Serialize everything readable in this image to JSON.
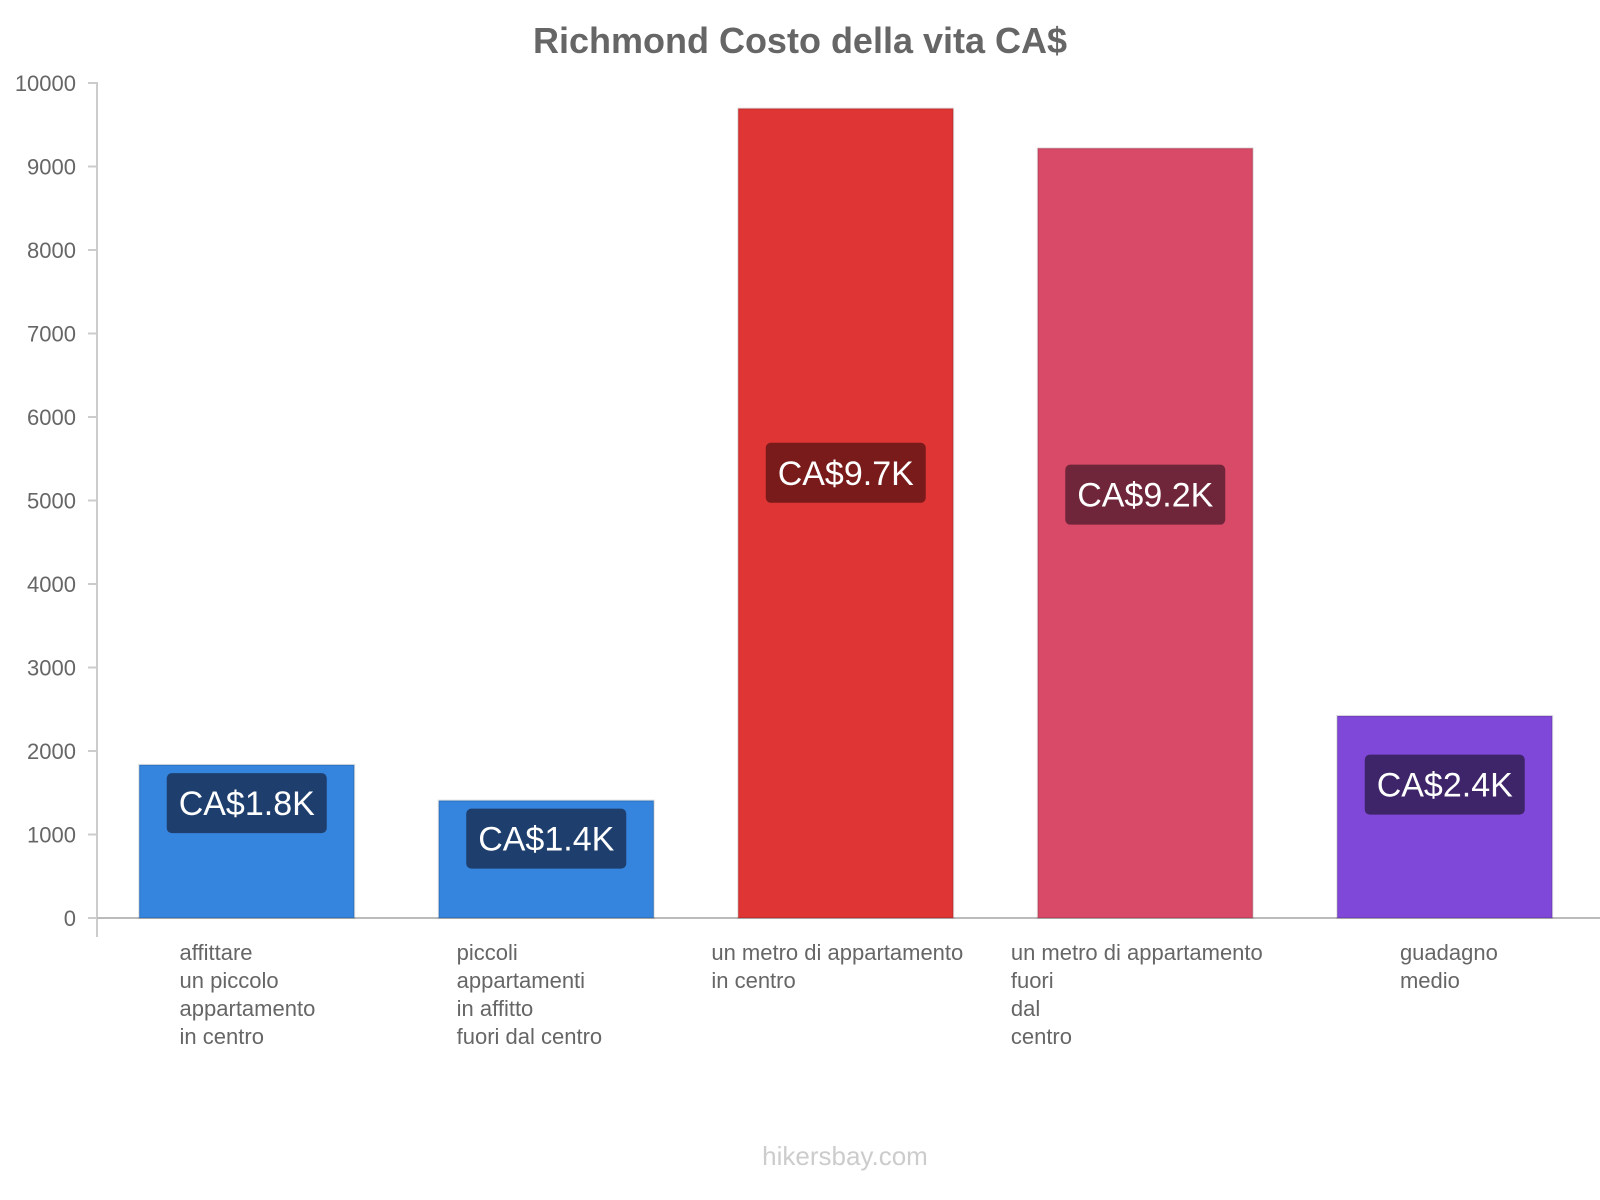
{
  "chart_data": {
    "type": "bar",
    "title": "Richmond Costo della vita CA$",
    "xlabel": "",
    "ylabel": "",
    "ylim": [
      0,
      10000
    ],
    "yticks": [
      "0",
      "1000",
      "2000",
      "3000",
      "4000",
      "5000",
      "6000",
      "7000",
      "8000",
      "9000",
      "10000"
    ],
    "categories": [
      [
        "affittare",
        "un piccolo",
        "appartamento",
        "in centro"
      ],
      [
        "piccoli",
        "appartamenti",
        "in affitto",
        "fuori dal centro"
      ],
      [
        "un metro di appartamento",
        "in centro"
      ],
      [
        "un metro di appartamento",
        "fuori",
        "dal",
        "centro"
      ],
      [
        "guadagno",
        "medio"
      ]
    ],
    "values": [
      1834,
      1406,
      9694,
      9218,
      2420
    ],
    "value_labels": [
      "CA$1.8K",
      "CA$1.4K",
      "CA$9.7K",
      "CA$9.2K",
      "CA$2.4K"
    ],
    "colors": [
      "#3584de",
      "#3584de",
      "#e03535",
      "#d84a68",
      "#8048d8"
    ],
    "label_colors": [
      "#1e3f6e",
      "#1e3f6e",
      "#7a1b1b",
      "#70263a",
      "#3e2569"
    ],
    "grid": false,
    "legend": "none"
  },
  "watermark": "hikersbay.com"
}
